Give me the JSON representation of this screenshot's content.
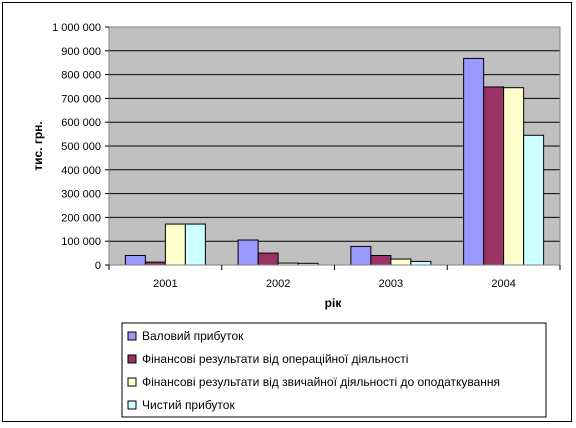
{
  "chart_data": {
    "type": "bar",
    "title": "",
    "xlabel": "рік",
    "ylabel": "тис. грн.",
    "categories": [
      "2001",
      "2002",
      "2003",
      "2004"
    ],
    "ylim": [
      0,
      1000000
    ],
    "yticks": [
      0,
      100000,
      200000,
      300000,
      400000,
      500000,
      600000,
      700000,
      800000,
      900000,
      1000000
    ],
    "ytick_labels": [
      "0",
      "100 000",
      "200 000",
      "300 000",
      "400 000",
      "500 000",
      "600 000",
      "700 000",
      "800 000",
      "900 000",
      "1 000 000"
    ],
    "grid": true,
    "legend_position": "bottom",
    "plot_background": "#c0c0c0",
    "series": [
      {
        "name": "Валовий прибуток",
        "color": "#9999ff",
        "values": [
          40000,
          105000,
          78000,
          868000
        ]
      },
      {
        "name": "Фінансові результати від операційної діяльності",
        "color": "#993366",
        "values": [
          12000,
          50000,
          40000,
          748000
        ]
      },
      {
        "name": "Фінансові результати від звичайної діяльності до оподаткування",
        "color": "#ffffcc",
        "values": [
          172000,
          8000,
          25000,
          745000
        ]
      },
      {
        "name": "Чистий прибуток",
        "color": "#ccffff",
        "values": [
          172000,
          7000,
          15000,
          545000
        ]
      }
    ]
  }
}
